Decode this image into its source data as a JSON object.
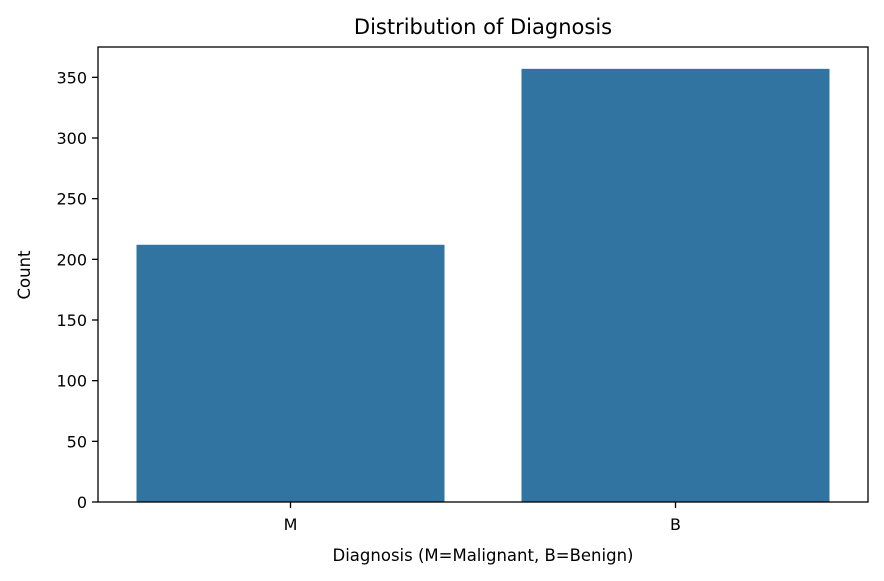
{
  "chart_data": {
    "type": "bar",
    "title": "Distribution of Diagnosis",
    "xlabel": "Diagnosis (M=Malignant, B=Benign)",
    "ylabel": "Count",
    "categories": [
      "M",
      "B"
    ],
    "values": [
      212,
      357
    ],
    "ylim": [
      0,
      375
    ],
    "yticks": [
      0,
      50,
      100,
      150,
      200,
      250,
      300,
      350
    ],
    "grid": false,
    "colors": {
      "bar": "#3274a1",
      "axis": "#000000"
    }
  }
}
